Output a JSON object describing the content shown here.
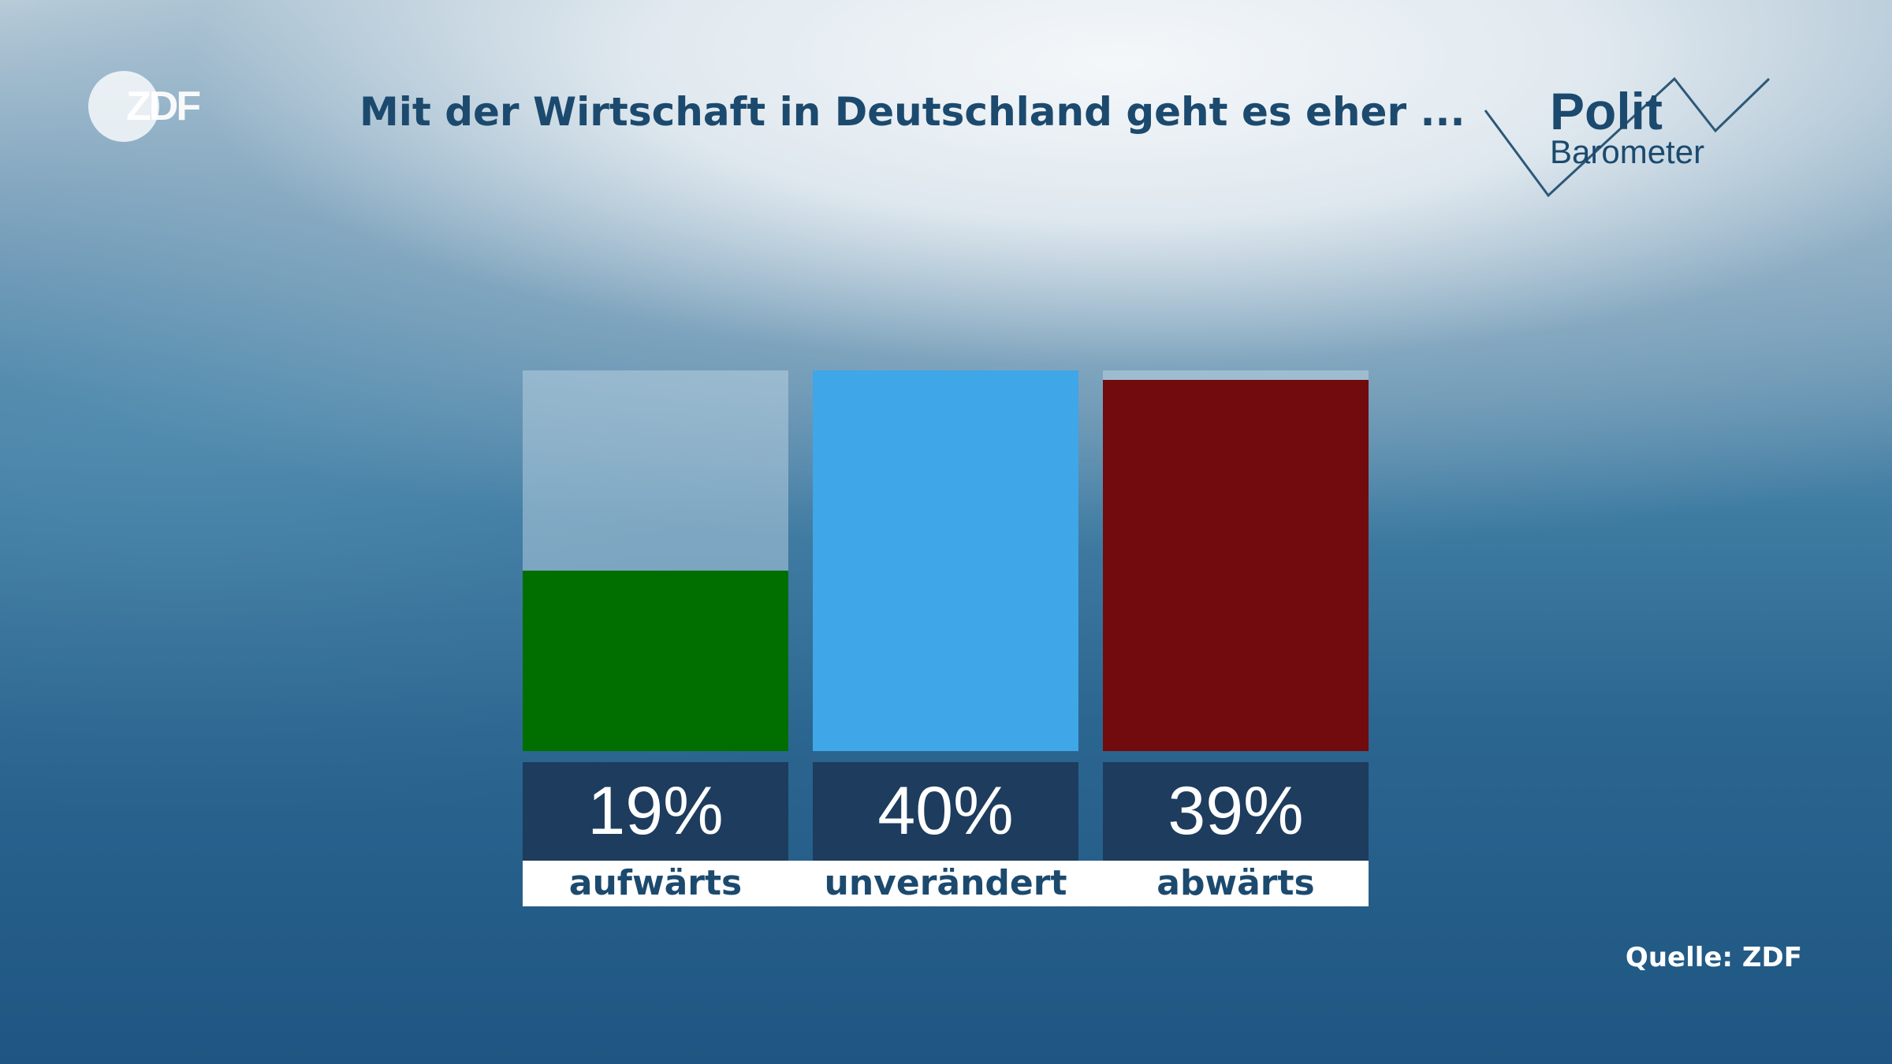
{
  "logo": {
    "brand": "ZDF"
  },
  "header": {
    "title": "Mit der Wirtschaft in Deutschland geht es eher ..."
  },
  "polit_logo": {
    "line1": "Polit",
    "line2": "Barometer"
  },
  "chart_data": {
    "type": "bar",
    "title": "Mit der Wirtschaft in Deutschland geht es eher ...",
    "categories": [
      "aufwärts",
      "unverändert",
      "abwärts"
    ],
    "values": [
      19,
      40,
      39
    ],
    "value_labels": [
      "19%",
      "40%",
      "39%"
    ],
    "unit": "%",
    "ylim": [
      0,
      40
    ],
    "colors": [
      "#006f00",
      "#3fa6e8",
      "#720b0d"
    ],
    "grid": false,
    "legend": "none"
  },
  "footer": {
    "source": "Quelle: ZDF"
  }
}
